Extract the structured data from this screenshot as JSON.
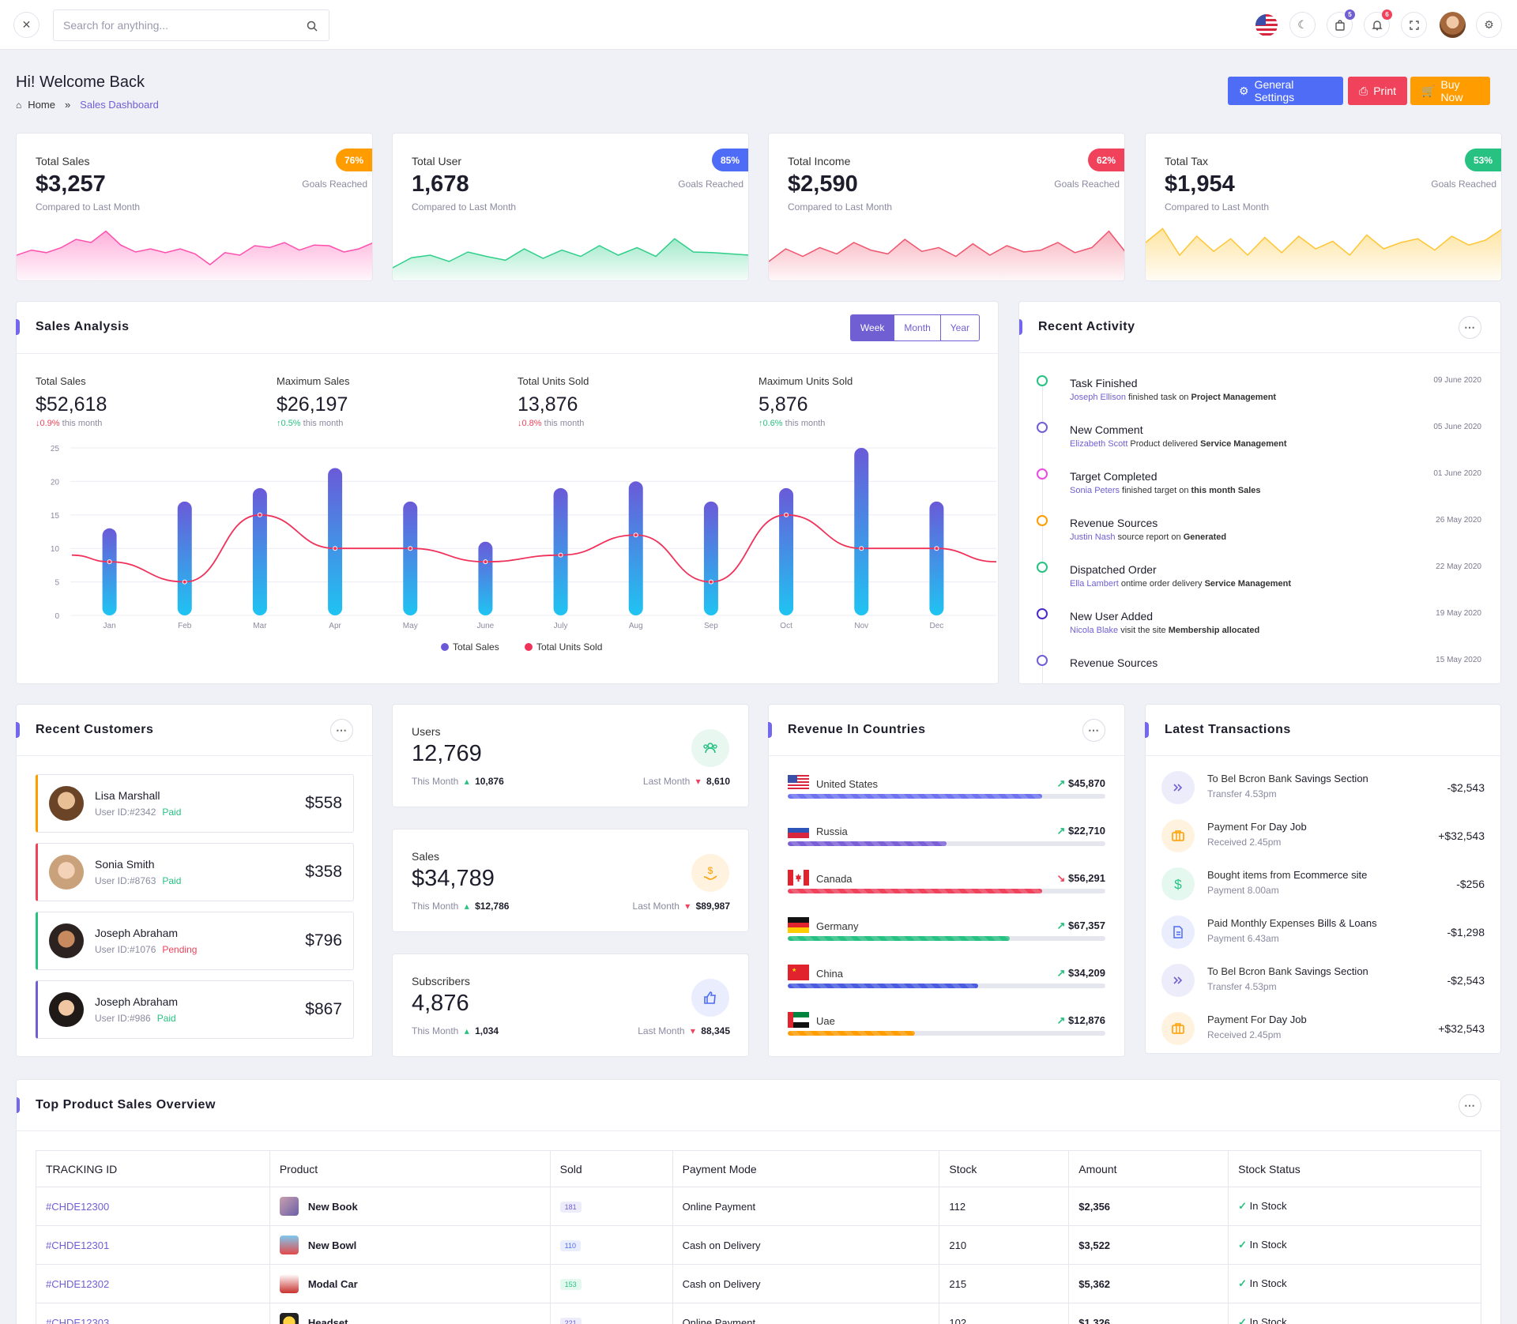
{
  "search": {
    "placeholder": "Search for anything..."
  },
  "header": {
    "notif_badge_cart": "5",
    "notif_badge_bell": "6"
  },
  "page": {
    "title": "Hi! Welcome Back",
    "breadcrumb_home": "Home",
    "breadcrumb_current": "Sales Dashboard",
    "btn_settings": "General Settings",
    "btn_print": "Print",
    "btn_buy": "Buy Now"
  },
  "stats": [
    {
      "title": "Total Sales",
      "value": "$3,257",
      "sub": "Compared to Last Month",
      "pill": "76%",
      "goal": "Goals Reached",
      "color": "#ff9d00"
    },
    {
      "title": "Total User",
      "value": "1,678",
      "sub": "Compared to Last Month",
      "pill": "85%",
      "goal": "Goals Reached",
      "color": "#4e6cf5"
    },
    {
      "title": "Total Income",
      "value": "$2,590",
      "sub": "Compared to Last Month",
      "pill": "62%",
      "goal": "Goals Reached",
      "color": "#f0425b"
    },
    {
      "title": "Total Tax",
      "value": "$1,954",
      "sub": "Compared to Last Month",
      "pill": "53%",
      "goal": "Goals Reached",
      "color": "#27c281"
    }
  ],
  "sales_analysis": {
    "title": "Sales Analysis",
    "tabs": [
      "Week",
      "Month",
      "Year"
    ],
    "kpis": [
      {
        "label": "Total Sales",
        "value": "$52,618",
        "change": "0.9%",
        "dir": "down",
        "suffix": "this month"
      },
      {
        "label": "Maximum Sales",
        "value": "$26,197",
        "change": "0.5%",
        "dir": "up",
        "suffix": "this month"
      },
      {
        "label": "Total Units Sold",
        "value": "13,876",
        "change": "0.8%",
        "dir": "down",
        "suffix": "this month"
      },
      {
        "label": "Maximum Units Sold",
        "value": "5,876",
        "change": "0.6%",
        "dir": "up",
        "suffix": "this month"
      }
    ]
  },
  "chart_data": {
    "type": "bar",
    "categories": [
      "Jan",
      "Feb",
      "Mar",
      "Apr",
      "May",
      "June",
      "July",
      "Aug",
      "Sep",
      "Oct",
      "Nov",
      "Dec"
    ],
    "series": [
      {
        "name": "Total Sales",
        "type": "bar",
        "values": [
          13,
          17,
          19,
          22,
          17,
          11,
          19,
          20,
          17,
          19,
          25,
          17
        ]
      },
      {
        "name": "Total Units Sold",
        "type": "line",
        "values": [
          8,
          5,
          15,
          10,
          10,
          8,
          9,
          12,
          5,
          15,
          10,
          10
        ]
      }
    ],
    "yticks": [
      "0",
      "5",
      "10",
      "15",
      "20",
      "25"
    ],
    "ylim": [
      0,
      25
    ],
    "legend": "bottom-center",
    "colors": {
      "bar_top": "#6a5ad8",
      "bar_bottom": "#1fc4f2",
      "line": "#f0325b"
    }
  },
  "recent_activity": {
    "title": "Recent Activity",
    "items": [
      {
        "title": "Task Finished",
        "who": "Joseph Ellison",
        "mid": " finished task on ",
        "what": "Project Management",
        "date": "09 June 2020",
        "color": "#27c281"
      },
      {
        "title": "New Comment",
        "who": "Elizabeth Scott",
        "mid": " Product delivered ",
        "what": "Service Management",
        "date": "05 June 2020",
        "color": "#6f5fd3"
      },
      {
        "title": "Target Completed",
        "who": "Sonia Peters",
        "mid": " finished target on ",
        "what": "this month Sales",
        "date": "01 June 2020",
        "color": "#e84ce0"
      },
      {
        "title": "Revenue Sources",
        "who": "Justin Nash",
        "mid": " source report on ",
        "what": "Generated",
        "date": "26 May 2020",
        "color": "#ff9d00"
      },
      {
        "title": "Dispatched Order",
        "who": "Ella Lambert",
        "mid": " ontime order delivery ",
        "what": "Service Management",
        "date": "22 May 2020",
        "color": "#27c281"
      },
      {
        "title": "New User Added",
        "who": "Nicola Blake",
        "mid": " visit the site ",
        "what": "Membership allocated",
        "date": "19 May 2020",
        "color": "#4b2ac9"
      },
      {
        "title": "Revenue Sources",
        "who": "",
        "mid": "",
        "what": "",
        "date": "15 May 2020",
        "color": "#6f5fd3"
      }
    ]
  },
  "recent_customers": {
    "title": "Recent Customers",
    "items": [
      {
        "name": "Lisa Marshall",
        "userid": "User ID:#2342",
        "status": "Paid",
        "amount": "$558",
        "accent": "#ff9d00"
      },
      {
        "name": "Sonia Smith",
        "userid": "User ID:#8763",
        "status": "Paid",
        "amount": "$358",
        "accent": "#f0425b"
      },
      {
        "name": "Joseph Abraham",
        "userid": "User ID:#1076",
        "status": "Pending",
        "amount": "$796",
        "accent": "#27c281"
      },
      {
        "name": "Joseph Abraham",
        "userid": "User ID:#986",
        "status": "Paid",
        "amount": "$867",
        "accent": "#6f5fd3"
      }
    ]
  },
  "mini_stats": [
    {
      "label": "Users",
      "value": "12,769",
      "this_month_label": "This Month",
      "this_month": "10,876",
      "last_month_label": "Last Month",
      "last_month": "8,610",
      "icon": "users-icon",
      "color": "#27c281"
    },
    {
      "label": "Sales",
      "value": "$34,789",
      "this_month_label": "This Month",
      "this_month": "$12,786",
      "last_month_label": "Last Month",
      "last_month": "$89,987",
      "icon": "dollar-hand-icon",
      "color": "#ff9d00"
    },
    {
      "label": "Subscribers",
      "value": "4,876",
      "this_month_label": "This Month",
      "this_month": "1,034",
      "last_month_label": "Last Month",
      "last_month": "88,345",
      "icon": "thumbs-up-icon",
      "color": "#4e6cf5"
    }
  ],
  "revenue_countries": {
    "title": "Revenue In Countries",
    "items": [
      {
        "name": "United States",
        "amount": "$45,870",
        "trend": "up",
        "progress": 0.8,
        "color": "#6f73f0"
      },
      {
        "name": "Russia",
        "amount": "$22,710",
        "trend": "up",
        "progress": 0.5,
        "color": "#7a5fd6"
      },
      {
        "name": "Canada",
        "amount": "$56,291",
        "trend": "down",
        "progress": 0.8,
        "color": "#f0425b"
      },
      {
        "name": "Germany",
        "amount": "$67,357",
        "trend": "up",
        "progress": 0.7,
        "color": "#27c281"
      },
      {
        "name": "China",
        "amount": "$34,209",
        "trend": "up",
        "progress": 0.6,
        "color": "#4b5ce0"
      },
      {
        "name": "Uae",
        "amount": "$12,876",
        "trend": "up",
        "progress": 0.4,
        "color": "#ff9d00"
      }
    ]
  },
  "transactions": {
    "title": "Latest Transactions",
    "items": [
      {
        "title_a": "To Bel Bcron Bank ",
        "title_b": "Savings Section",
        "sub": "Transfer 4.53pm",
        "amount": "-$2,543",
        "icon": "double-chevron-icon",
        "color": "#6f5fd3"
      },
      {
        "title_a": "Payment For ",
        "title_b": "Day Job",
        "sub": "Received 2.45pm",
        "amount": "+$32,543",
        "icon": "briefcase-icon",
        "color": "#ff9d00"
      },
      {
        "title_a": "Bought items from ",
        "title_b": "Ecommerce site",
        "sub": "Payment 8.00am",
        "amount": "-$256",
        "icon": "dollar-icon",
        "color": "#27c281"
      },
      {
        "title_a": "Paid Monthly Expenses ",
        "title_b": "Bills & Loans",
        "sub": "Payment 6.43am",
        "amount": "-$1,298",
        "icon": "document-icon",
        "color": "#4e6cf5"
      },
      {
        "title_a": "To Bel Bcron Bank ",
        "title_b": "Savings Section",
        "sub": "Transfer 4.53pm",
        "amount": "-$2,543",
        "icon": "double-chevron-icon",
        "color": "#6f5fd3"
      },
      {
        "title_a": "Payment For ",
        "title_b": "Day Job",
        "sub": "Received 2.45pm",
        "amount": "+$32,543",
        "icon": "briefcase-icon",
        "color": "#ff9d00"
      }
    ]
  },
  "product_table": {
    "title": "Top Product Sales Overview",
    "columns": [
      "TRACKING ID",
      "Product",
      "Sold",
      "Payment Mode",
      "Stock",
      "Amount",
      "Stock Status"
    ],
    "rows": [
      {
        "id": "#CHDE12300",
        "product": "New Book",
        "sold": "181",
        "sold_color": "#6f5fd3",
        "payment": "Online Payment",
        "stock": "112",
        "amount": "$2,356",
        "status": "In Stock"
      },
      {
        "id": "#CHDE12301",
        "product": "New Bowl",
        "sold": "110",
        "sold_color": "#4e6cf5",
        "payment": "Cash on Delivery",
        "stock": "210",
        "amount": "$3,522",
        "status": "In Stock"
      },
      {
        "id": "#CHDE12302",
        "product": "Modal Car",
        "sold": "153",
        "sold_color": "#27c281",
        "payment": "Cash on Delivery",
        "stock": "215",
        "amount": "$5,362",
        "status": "In Stock"
      },
      {
        "id": "#CHDE12303",
        "product": "Headset",
        "sold": "221",
        "sold_color": "#6f5fd3",
        "payment": "Online Payment",
        "stock": "102",
        "amount": "$1,326",
        "status": "In Stock"
      }
    ]
  }
}
